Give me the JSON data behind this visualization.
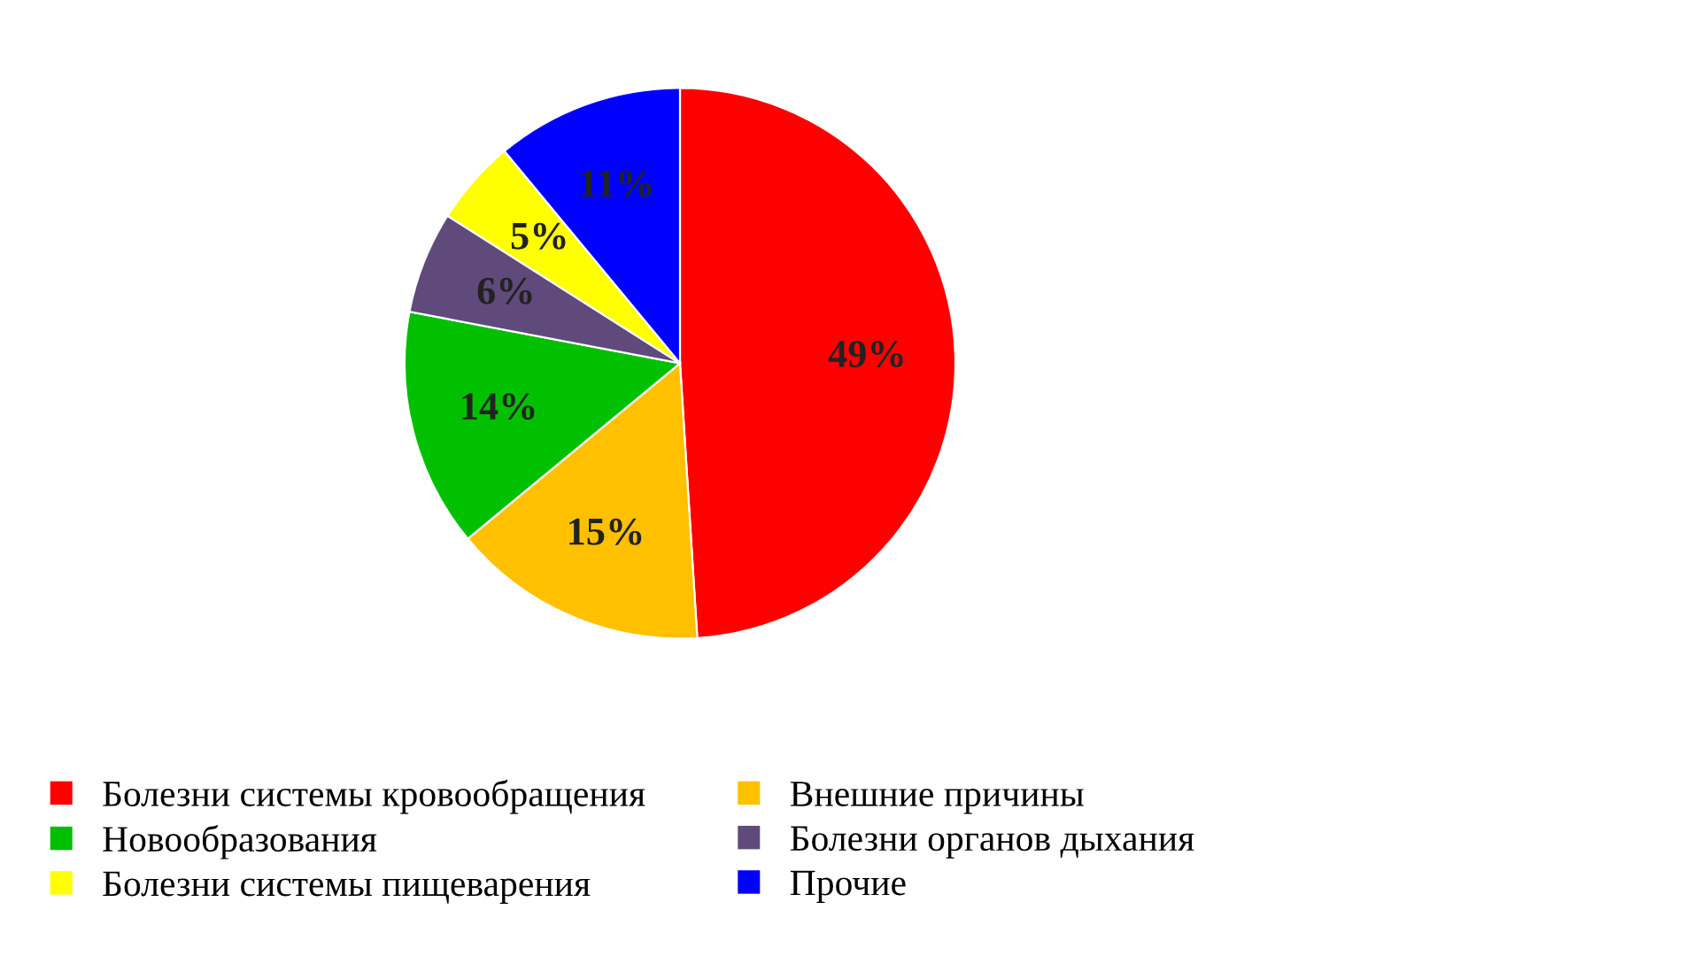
{
  "chart_data": {
    "type": "pie",
    "categories": [
      "Болезни системы кровообращения",
      "Внешние причины",
      "Новообразования",
      "Болезни органов дыхания",
      "Болезни системы пищеварения",
      "Прочие"
    ],
    "values": [
      49,
      15,
      14,
      6,
      5,
      11
    ],
    "value_labels": [
      "49%",
      "15%",
      "14%",
      "6%",
      "5%",
      "11%"
    ],
    "colors": [
      "#ff0000",
      "#ffc000",
      "#00c000",
      "#604a7b",
      "#ffff00",
      "#0000ff"
    ],
    "legend": "bottom"
  }
}
